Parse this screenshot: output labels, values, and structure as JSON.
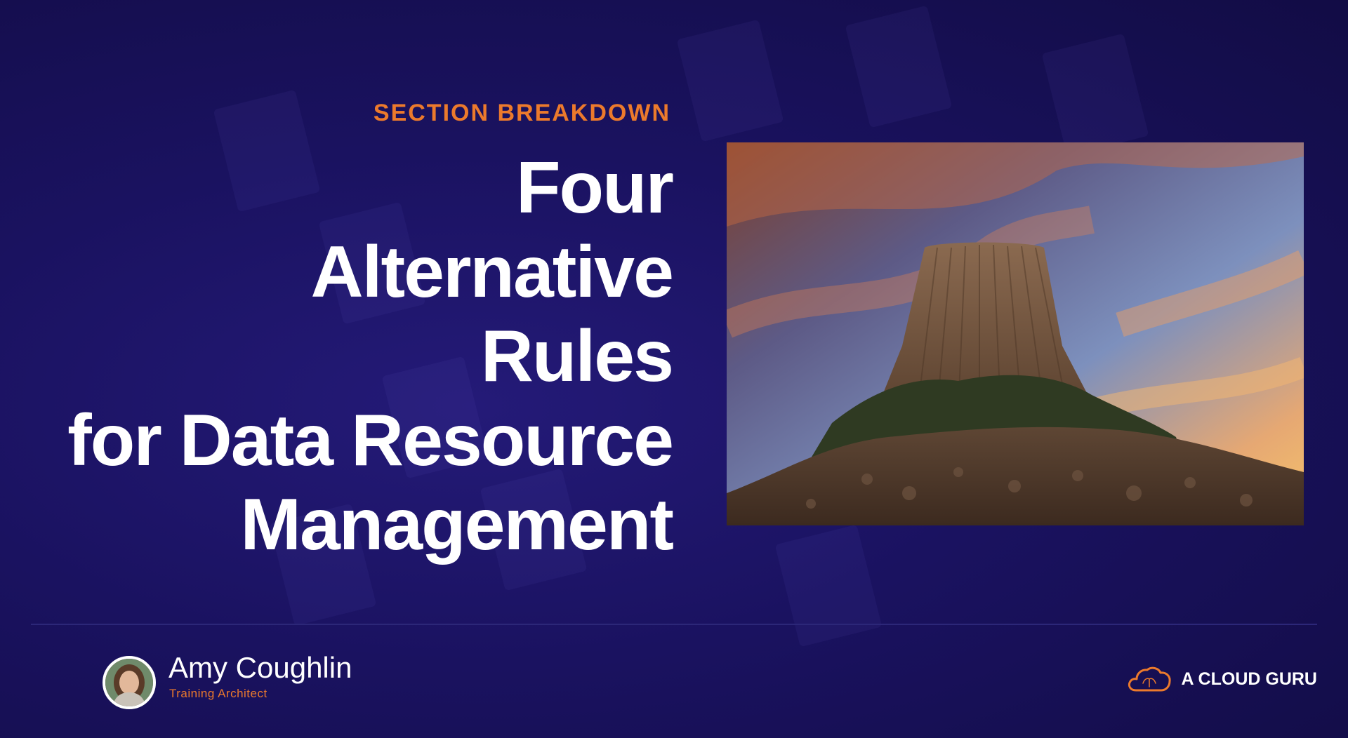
{
  "slide": {
    "section_label": "SECTION BREAKDOWN",
    "title_lines": [
      "Four",
      "Alternative",
      "Rules",
      "for Data Resource",
      "Management"
    ],
    "image": "devils-tower-at-sunset",
    "colors": {
      "background": "#1a1260",
      "accent": "#ec7a2c",
      "title": "#ffffff"
    }
  },
  "footer": {
    "presenter": {
      "name": "Amy Coughlin",
      "role": "Training Architect"
    },
    "brand": {
      "logo_icon": "cloud-logo-icon",
      "name": "A CLOUD GURU"
    }
  }
}
